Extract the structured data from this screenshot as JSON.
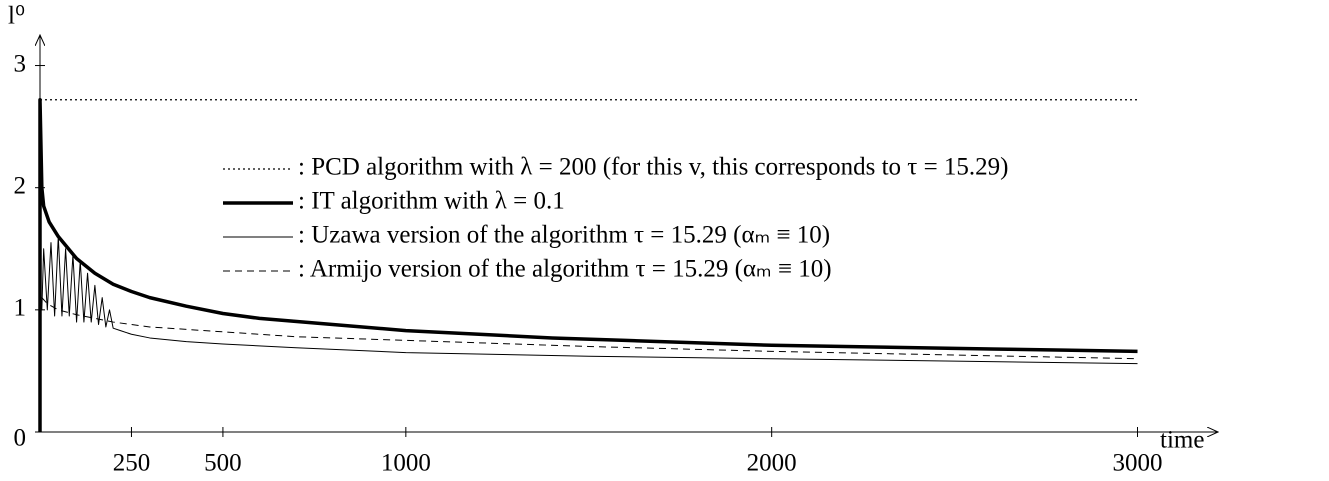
{
  "chart_data": {
    "type": "line",
    "x_label": "time",
    "y_label": "l⁰",
    "xlim": [
      0,
      3220
    ],
    "ylim": [
      0,
      3.25
    ],
    "xticks": [
      250,
      500,
      1000,
      2000,
      3000
    ],
    "yticks": [
      0,
      1,
      2,
      3
    ],
    "series": [
      {
        "name": ": PCD algorithm with λ = 200 (for this v, this corresponds to τ = 15.29)",
        "color": "#000000",
        "style": "dotted",
        "width": 1.2,
        "x": [
          0,
          3000
        ],
        "values": [
          2.72,
          2.72
        ]
      },
      {
        "name": ": IT algorithm with λ = 0.1",
        "color": "#000000",
        "style": "solid",
        "width": 3.5,
        "x": [
          0,
          0,
          5,
          10,
          25,
          50,
          100,
          150,
          200,
          250,
          300,
          400,
          500,
          600,
          800,
          1000,
          1200,
          1400,
          1600,
          1800,
          2000,
          2200,
          2400,
          2600,
          2800,
          3000
        ],
        "values": [
          0,
          2.72,
          2.0,
          1.85,
          1.72,
          1.6,
          1.42,
          1.3,
          1.21,
          1.15,
          1.1,
          1.03,
          0.97,
          0.93,
          0.88,
          0.83,
          0.8,
          0.77,
          0.75,
          0.73,
          0.71,
          0.7,
          0.69,
          0.68,
          0.67,
          0.66
        ]
      },
      {
        "name": ": Uzawa version of the algorithm τ = 15.29 (αₘ ≡ 10)",
        "color": "#000000",
        "style": "solid",
        "width": 1,
        "x": [
          0,
          5,
          10,
          20,
          30,
          40,
          50,
          60,
          70,
          80,
          90,
          100,
          110,
          120,
          130,
          140,
          150,
          160,
          170,
          180,
          190,
          200,
          220,
          250,
          300,
          400,
          500,
          700,
          1000,
          1500,
          2000,
          2500,
          3000
        ],
        "values": [
          1.2,
          1.0,
          1.5,
          1.0,
          1.55,
          0.95,
          1.6,
          0.95,
          1.5,
          0.95,
          1.45,
          0.9,
          1.4,
          0.9,
          1.3,
          0.9,
          1.2,
          0.88,
          1.1,
          0.86,
          1.0,
          0.85,
          0.83,
          0.8,
          0.77,
          0.74,
          0.72,
          0.69,
          0.65,
          0.62,
          0.6,
          0.58,
          0.56
        ]
      },
      {
        "name": ": Armijo version of the algorithm τ = 15.29 (αₘ ≡ 10)",
        "color": "#000000",
        "style": "dashed",
        "width": 1,
        "x": [
          0,
          5,
          20,
          50,
          100,
          150,
          200,
          250,
          300,
          400,
          500,
          700,
          1000,
          1500,
          2000,
          2500,
          3000
        ],
        "values": [
          1.2,
          1.1,
          1.05,
          1.0,
          0.96,
          0.93,
          0.9,
          0.88,
          0.86,
          0.84,
          0.82,
          0.78,
          0.75,
          0.7,
          0.66,
          0.63,
          0.6
        ]
      }
    ]
  }
}
